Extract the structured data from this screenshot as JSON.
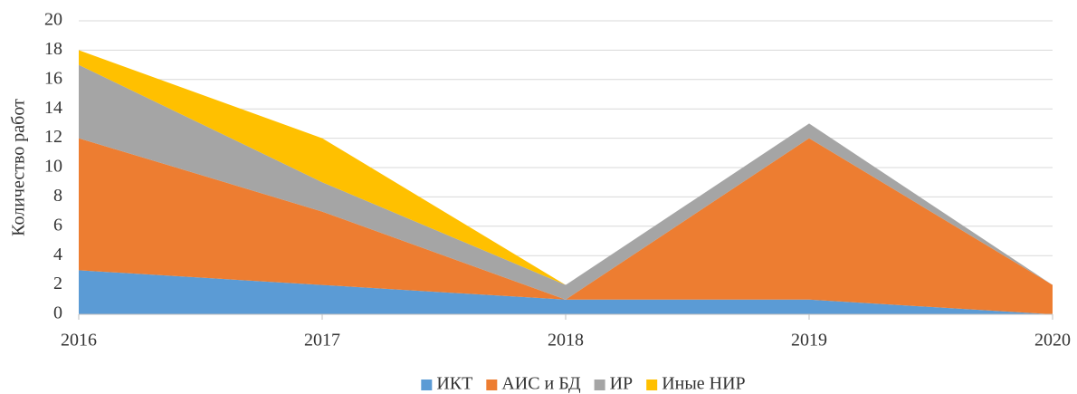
{
  "chart_data": {
    "type": "stacked-area",
    "y_label": "Количество работ",
    "x": [
      2016,
      2017,
      2018,
      2019,
      2020
    ],
    "xlim": [
      2016,
      2020
    ],
    "xticks": [
      2016,
      2017,
      2018,
      2019,
      2020
    ],
    "ylim": [
      0,
      20
    ],
    "yticks": [
      0,
      2,
      4,
      6,
      8,
      10,
      12,
      14,
      16,
      18,
      20
    ],
    "grid": true,
    "legend": "bottom",
    "series": [
      {
        "name": "ИКТ",
        "color": "#5b9bd5",
        "values": [
          3,
          2,
          1,
          1,
          0
        ]
      },
      {
        "name": "АИС и БД",
        "color": "#ed7d31",
        "values": [
          9,
          5,
          0,
          11,
          2
        ]
      },
      {
        "name": "ИР",
        "color": "#a5a5a5",
        "values": [
          5,
          2,
          1,
          1,
          0
        ]
      },
      {
        "name": "Иные НИР",
        "color": "#ffc000",
        "values": [
          1,
          3,
          0,
          0,
          0
        ]
      }
    ]
  }
}
